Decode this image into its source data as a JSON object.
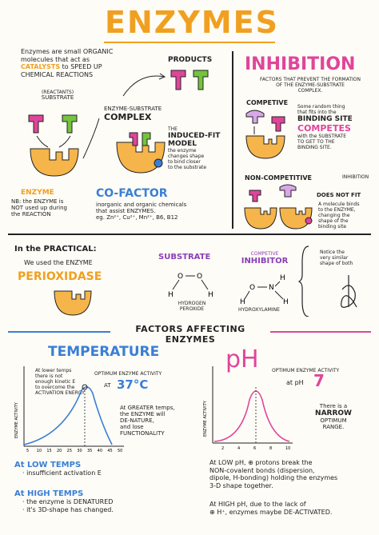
{
  "title": "ENZYMES",
  "intro": {
    "line1": "Enzymes are small ORGANIC",
    "line2": "molecules that act as",
    "catalysts": "CATALYSTS",
    "line3": "to SPEED UP",
    "line4": "CHEMICAL REACTIONS"
  },
  "substrate_label": {
    "sub": "(REACTANTS)",
    "main": "SUBSTRATE"
  },
  "enzyme_label": "ENZYME",
  "nb": {
    "line1": "NB: the ENZYME is",
    "line2": "NOT used up during",
    "line3": "the REACTION"
  },
  "products_label": "PRODUCTS",
  "complex_label": {
    "line1": "ENZYME-SUBSTRATE",
    "line2": "COMPLEX"
  },
  "induced_fit": {
    "title1": "THE",
    "title2": "INDUCED-FIT",
    "title3": "MODEL",
    "desc1": "the enzyme",
    "desc2": "changes shape",
    "desc3": "to bind closer",
    "desc4": "to the substrate"
  },
  "cofactor": {
    "title": "CO-FACTOR",
    "line1": "inorganic and organic chemicals",
    "line2": "that assist ENZYMES.",
    "line3": "eg. Zn²⁺, Cu²⁺, Mn²⁺, B6, B12"
  },
  "inhibition": {
    "title": "INHIBITION",
    "sub1": "FACTORS THAT PREVENT THE FORMATION",
    "sub2": "OF THE ENZYME-SUBSTRATE",
    "sub3": "COMPLEX.",
    "competitive_label": "COMPETIVE",
    "comp1": "Some random thing",
    "comp2": "that fits into the",
    "binding_site": "BINDING SITE",
    "competes": "COMPETES",
    "comp3": "with the SUBSTRATE",
    "comp4": "TO GET TO THE",
    "comp5": "BINDING SITE.",
    "noncomp_label": "NON-COMPETITIVE",
    "inhibitor_tag": "INHIBITION",
    "does_not_fit": "DOES NOT FIT",
    "nc1": "A molecule binds",
    "nc2": "to the ENZYME,",
    "nc3": "changing the",
    "nc4": "shape of the",
    "nc5": "binding site"
  },
  "practical": {
    "heading": "In the PRACTICAL:",
    "line1": "We used the ENZYME",
    "enzyme": "PERIOXIDASE",
    "substrate": "SUBSTRATE",
    "peroxide1": "HYDROGEN",
    "peroxide2": "PEROXIDE",
    "inhibitor1": "COMPETIVE",
    "inhibitor2": "INHIBITOR",
    "hydroxylamine": "HYDROXYLAMINE",
    "note1": "Notice the",
    "note2": "very similar",
    "note3": "shape of both",
    "atom_o": "O",
    "atom_h": "H",
    "atom_n": "N"
  },
  "factors_heading": "FACTORS AFFECTING ENZYMES",
  "temperature": {
    "title": "TEMPERATURE",
    "note1": "At lower temps",
    "note2": "there is not",
    "note3": "enough kinetic E",
    "note4": "to overcome the",
    "note5": "ACTIVATION ENERGY",
    "optimum1": "OPTIMUM ENZYME ACTIVITY",
    "optimum2": "AT",
    "optimum_value": "37°C",
    "greater1": "At GREATER temps,",
    "greater2": "the ENZYME will",
    "greater3": "DE-NATURE,",
    "greater4": "and lose",
    "greater5": "FUNCTIONALITY",
    "ylabel": "ENZYME ACTIVITY",
    "xticks": [
      "5",
      "10",
      "15",
      "20",
      "25",
      "30",
      "35",
      "40",
      "45",
      "50"
    ]
  },
  "ph": {
    "title": "pH",
    "optimum1": "OPTIMUM ENZYME ACTIVITY",
    "optimum2": "at pH",
    "optimum_value": "7",
    "narrow1": "There is a",
    "narrow2": "NARROW",
    "narrow3": "OPTIMUM",
    "narrow4": "RANGE.",
    "ylabel": "ENZYME ACTIVITY",
    "xticks": [
      "2",
      "4",
      "6",
      "8",
      "10"
    ]
  },
  "low_temps": {
    "heading": "At LOW TEMPS",
    "line": "· insufficient activation E"
  },
  "high_temps": {
    "heading": "At HIGH TEMPS",
    "line1": "· the enzyme is DENATURED",
    "line2": "· it's 3D-shape has changed."
  },
  "low_ph": {
    "line1": "At LOW pH, ⊕ protons break the",
    "line2": "NON-covalent bonds (dispersion,",
    "line3": "dipole, H-bonding) holding the enzymes",
    "line4": "3-D shape together."
  },
  "high_ph": {
    "line1": "At HIGH pH, due to the lack of",
    "line2": "⊕ H⁺, enzymes maybe DE-ACTIVATED."
  },
  "colors": {
    "orange": "#f0a020",
    "pink": "#e0459a",
    "blue": "#3a7fd5",
    "purple": "#8a3fb5",
    "green": "#74c43e"
  }
}
